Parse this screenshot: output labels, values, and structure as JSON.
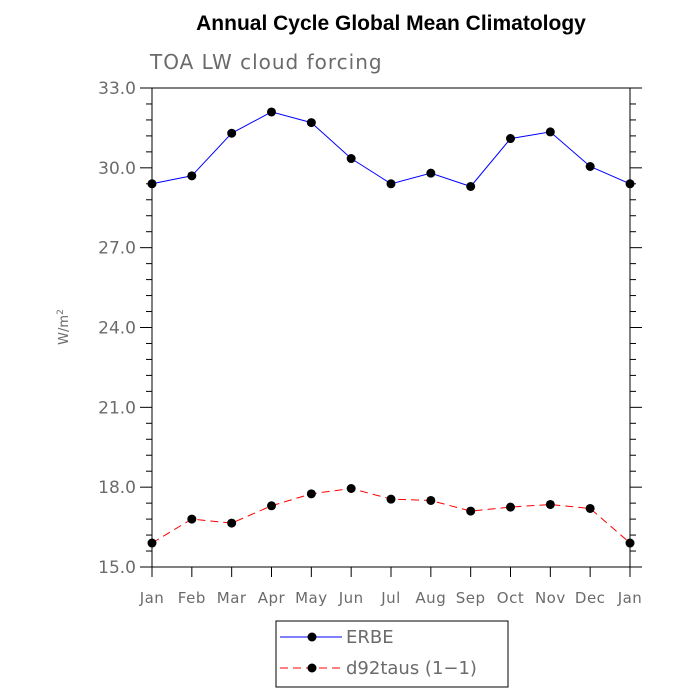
{
  "chart_data": {
    "type": "line",
    "title": "Annual Cycle Global Mean Climatology",
    "subtitle": "TOA LW cloud forcing",
    "xlabel": "",
    "ylabel": "W/m",
    "ylabel_sup": "2",
    "categories": [
      "Jan",
      "Feb",
      "Mar",
      "Apr",
      "May",
      "Jun",
      "Jul",
      "Aug",
      "Sep",
      "Oct",
      "Nov",
      "Dec",
      "Jan"
    ],
    "ylim": [
      15.0,
      33.0
    ],
    "yticks": [
      "15.0",
      "18.0",
      "21.0",
      "24.0",
      "27.0",
      "30.0",
      "33.0"
    ],
    "series": [
      {
        "name": "ERBE",
        "color": "#0000ff",
        "dash": "solid",
        "marker": "circle",
        "values": [
          29.4,
          29.7,
          31.3,
          32.1,
          31.7,
          30.35,
          29.4,
          29.8,
          29.3,
          31.1,
          31.35,
          30.05,
          29.4
        ]
      },
      {
        "name": "d92taus (1−1)",
        "color": "#ff0000",
        "dash": "dashed",
        "marker": "circle",
        "values": [
          15.9,
          16.8,
          16.65,
          17.3,
          17.75,
          17.95,
          17.55,
          17.5,
          17.1,
          17.25,
          17.35,
          17.2,
          15.9
        ]
      }
    ],
    "legend_position": "bottom-center"
  }
}
